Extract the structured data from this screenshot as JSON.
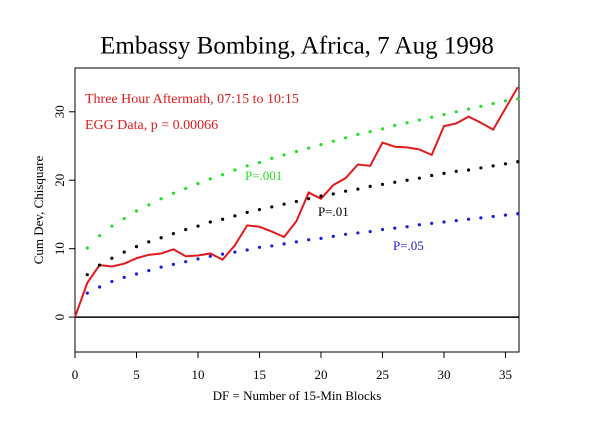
{
  "chart_data": {
    "type": "line",
    "title": "Embassy Bombing, Africa, 7 Aug 1998",
    "xlabel": "DF = Number of 15-Min Blocks",
    "ylabel": "Cum Dev, Chisquare",
    "annotations": [
      {
        "text": "Three Hour Aftermath, 07:15 to 10:15",
        "color": "#e31a1c"
      },
      {
        "text": "EGG Data, p = 0.00066",
        "color": "#e31a1c"
      }
    ],
    "xlim": [
      0,
      36.1
    ],
    "ylim": [
      -5.1,
      36.4
    ],
    "xticks": [
      0,
      5,
      10,
      15,
      20,
      25,
      30,
      35
    ],
    "yticks": [
      0,
      10,
      20,
      30
    ],
    "reference_line": 0,
    "series": [
      {
        "color": "#e31a1c",
        "style": "line",
        "x": [
          0,
          1,
          2,
          3,
          4,
          5,
          6,
          7,
          8,
          9,
          10,
          11,
          12,
          13,
          14,
          15,
          16,
          17,
          18,
          19,
          20,
          21,
          22,
          23,
          24,
          25,
          26,
          27,
          28,
          29,
          30,
          31,
          32,
          33,
          34,
          35,
          36
        ],
        "values": [
          0,
          5,
          7.6,
          7.4,
          7.8,
          8.6,
          9.1,
          9.3,
          9.9,
          8.9,
          9.0,
          9.3,
          8.4,
          10.5,
          13.4,
          13.2,
          12.5,
          11.7,
          14,
          18.2,
          17.3,
          19.3,
          20.3,
          22.3,
          22.1,
          25.5,
          24.9,
          24.8,
          24.5,
          23.7,
          27.9,
          28.3,
          29.3,
          28.4,
          27.4,
          30.5,
          33.6
        ]
      },
      {
        "name": "P=.001",
        "color": "#22e022",
        "style": "dots",
        "x": [
          1,
          2,
          3,
          4,
          5,
          6,
          7,
          8,
          9,
          10,
          11,
          12,
          13,
          14,
          15,
          16,
          17,
          18,
          19,
          20,
          21,
          22,
          23,
          24,
          25,
          26,
          27,
          28,
          29,
          30,
          31,
          32,
          33,
          34,
          35,
          36
        ],
        "values": [
          10.1,
          11.9,
          13.3,
          14.4,
          15.5,
          16.4,
          17.3,
          18.1,
          18.8,
          19.5,
          20.2,
          20.8,
          21.5,
          22.1,
          22.6,
          23.2,
          23.7,
          24.2,
          24.7,
          25.2,
          25.7,
          26.2,
          26.7,
          27.1,
          27.5,
          28.0,
          28.4,
          28.8,
          29.2,
          29.6,
          30.0,
          30.4,
          30.8,
          31.2,
          31.6,
          31.9
        ]
      },
      {
        "name": "P=.01",
        "color": "#000000",
        "style": "dots",
        "x": [
          1,
          2,
          3,
          4,
          5,
          6,
          7,
          8,
          9,
          10,
          11,
          12,
          13,
          14,
          15,
          16,
          17,
          18,
          19,
          20,
          21,
          22,
          23,
          24,
          25,
          26,
          27,
          28,
          29,
          30,
          31,
          32,
          33,
          34,
          35,
          36
        ],
        "values": [
          6.2,
          7.6,
          8.6,
          9.5,
          10.3,
          11.0,
          11.6,
          12.2,
          12.8,
          13.3,
          13.9,
          14.3,
          14.8,
          15.3,
          15.7,
          16.1,
          16.5,
          16.9,
          17.3,
          17.7,
          18.0,
          18.4,
          18.7,
          19.1,
          19.4,
          19.7,
          20.0,
          20.3,
          20.7,
          21.0,
          21.3,
          21.5,
          21.8,
          22.1,
          22.4,
          22.7
        ]
      },
      {
        "name": "P=.05",
        "color": "#1c1ce0",
        "style": "dots",
        "x": [
          1,
          2,
          3,
          4,
          5,
          6,
          7,
          8,
          9,
          10,
          11,
          12,
          13,
          14,
          15,
          16,
          17,
          18,
          19,
          20,
          21,
          22,
          23,
          24,
          25,
          26,
          27,
          28,
          29,
          30,
          31,
          32,
          33,
          34,
          35,
          36
        ],
        "values": [
          3.5,
          4.4,
          5.2,
          5.8,
          6.3,
          6.8,
          7.3,
          7.7,
          8.1,
          8.5,
          8.9,
          9.2,
          9.5,
          9.8,
          10.2,
          10.4,
          10.7,
          11.0,
          11.3,
          11.5,
          11.8,
          12.1,
          12.3,
          12.5,
          12.8,
          13.0,
          13.2,
          13.5,
          13.7,
          13.9,
          14.1,
          14.3,
          14.5,
          14.7,
          14.9,
          15.1
        ]
      }
    ]
  }
}
